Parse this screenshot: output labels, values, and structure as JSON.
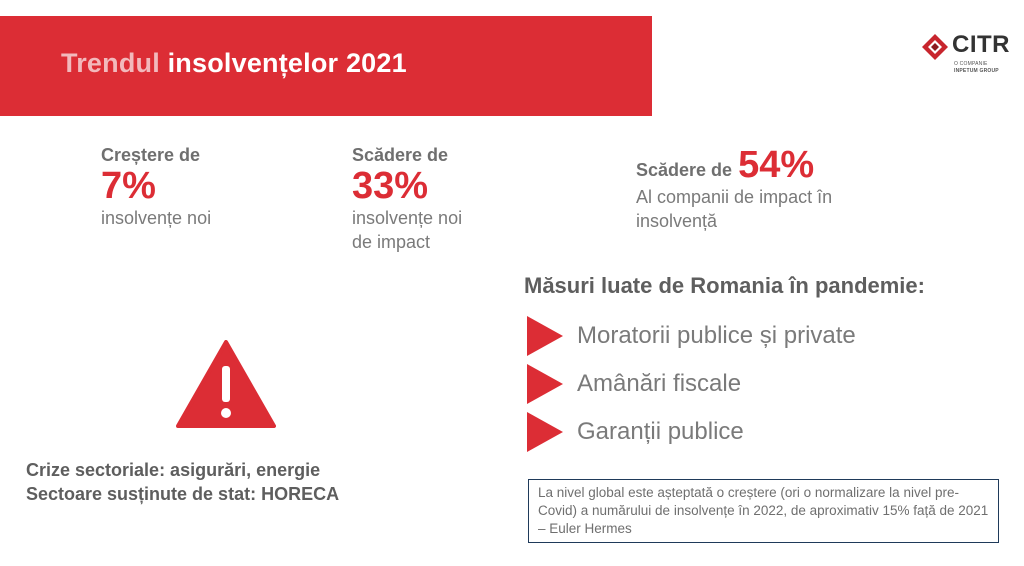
{
  "header": {
    "title_part1": "Trendul",
    "title_part2": "insolvențelor 2021"
  },
  "logo": {
    "name": "CITR",
    "sub1": "O COMPANIE",
    "sub2": "INPETUM GROUP",
    "icon": "diamond-logo-icon",
    "colors": {
      "primary": "#c8252d",
      "dark": "#8c1a20"
    }
  },
  "stats": [
    {
      "label": "Creștere de",
      "value": "7%",
      "desc": [
        "insolvențe noi"
      ]
    },
    {
      "label": "Scădere de",
      "value": "33%",
      "desc": [
        "insolvențe noi",
        "de impact"
      ]
    },
    {
      "label": "Scădere de",
      "value": "54%",
      "desc": [
        "Al companii de impact în",
        "insolvență"
      ]
    }
  ],
  "measures": {
    "title": "Măsuri luate de Romania în pandemie:",
    "items": [
      "Moratorii publice și private",
      "Amânări fiscale",
      "Garanții publice"
    ],
    "icon": "triangle-arrow-icon"
  },
  "warning": {
    "icon": "warning-icon",
    "color": "#dc2d35"
  },
  "crisis": {
    "line1": "Crize sectoriale: asigurări, energie",
    "line2": "Sectoare susținute de stat: HORECA"
  },
  "note": {
    "text": "La nivel global este așteptată o creștere (ori o normalizare la nivel pre-Covid) a numărului de insolvențe în 2022, de aproximativ 15% față de 2021 – Euler Hermes"
  },
  "colors": {
    "accent": "#dc2d35",
    "accent_light": "#f2b9bc",
    "note_border": "#1f3a5a"
  }
}
